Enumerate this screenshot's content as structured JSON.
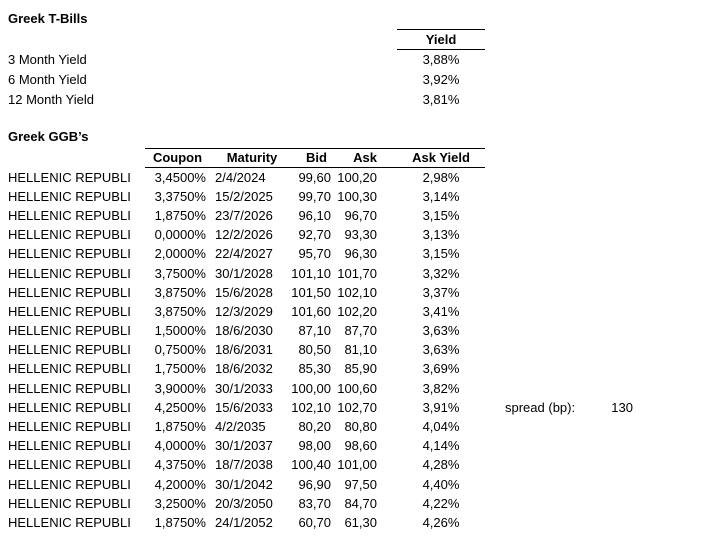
{
  "page": {
    "background_color": "#ffffff",
    "text_color": "#000000"
  },
  "tbills": {
    "title": "Greek T-Bills",
    "yield_header": "Yield",
    "rows": [
      {
        "label": "3 Month Yield",
        "value": "3,88%"
      },
      {
        "label": "6 Month Yield",
        "value": "3,92%"
      },
      {
        "label": "12 Month Yield",
        "value": "3,81%"
      }
    ]
  },
  "ggb": {
    "title": "Greek GGB’s",
    "headers": {
      "coupon": "Coupon",
      "maturity": "Maturity",
      "bid": "Bid",
      "ask": "Ask",
      "ask_yield": "Ask Yield"
    },
    "rows": [
      {
        "name": "HELLENIC REPUBLI",
        "coupon": "3,4500%",
        "maturity": "2/4/2024",
        "bid": "99,60",
        "ask": "100,20",
        "ask_yield": "2,98%"
      },
      {
        "name": "HELLENIC REPUBLI",
        "coupon": "3,3750%",
        "maturity": "15/2/2025",
        "bid": "99,70",
        "ask": "100,30",
        "ask_yield": "3,14%"
      },
      {
        "name": "HELLENIC REPUBLI",
        "coupon": "1,8750%",
        "maturity": "23/7/2026",
        "bid": "96,10",
        "ask": "96,70",
        "ask_yield": "3,15%"
      },
      {
        "name": "HELLENIC REPUBLI",
        "coupon": "0,0000%",
        "maturity": "12/2/2026",
        "bid": "92,70",
        "ask": "93,30",
        "ask_yield": "3,13%"
      },
      {
        "name": "HELLENIC REPUBLI",
        "coupon": "2,0000%",
        "maturity": "22/4/2027",
        "bid": "95,70",
        "ask": "96,30",
        "ask_yield": "3,15%"
      },
      {
        "name": "HELLENIC REPUBLI",
        "coupon": "3,7500%",
        "maturity": "30/1/2028",
        "bid": "101,10",
        "ask": "101,70",
        "ask_yield": "3,32%"
      },
      {
        "name": "HELLENIC REPUBLI",
        "coupon": "3,8750%",
        "maturity": "15/6/2028",
        "bid": "101,50",
        "ask": "102,10",
        "ask_yield": "3,37%"
      },
      {
        "name": "HELLENIC REPUBLI",
        "coupon": "3,8750%",
        "maturity": "12/3/2029",
        "bid": "101,60",
        "ask": "102,20",
        "ask_yield": "3,41%"
      },
      {
        "name": "HELLENIC REPUBLI",
        "coupon": "1,5000%",
        "maturity": "18/6/2030",
        "bid": "87,10",
        "ask": "87,70",
        "ask_yield": "3,63%"
      },
      {
        "name": "HELLENIC REPUBLI",
        "coupon": "0,7500%",
        "maturity": "18/6/2031",
        "bid": "80,50",
        "ask": "81,10",
        "ask_yield": "3,63%"
      },
      {
        "name": "HELLENIC REPUBLI",
        "coupon": "1,7500%",
        "maturity": "18/6/2032",
        "bid": "85,30",
        "ask": "85,90",
        "ask_yield": "3,69%"
      },
      {
        "name": "HELLENIC REPUBLI",
        "coupon": "3,9000%",
        "maturity": "30/1/2033",
        "bid": "100,00",
        "ask": "100,60",
        "ask_yield": "3,82%"
      },
      {
        "name": "HELLENIC REPUBLI",
        "coupon": "4,2500%",
        "maturity": "15/6/2033",
        "bid": "102,10",
        "ask": "102,70",
        "ask_yield": "3,91%"
      },
      {
        "name": "HELLENIC REPUBLI",
        "coupon": "1,8750%",
        "maturity": "4/2/2035",
        "bid": "80,20",
        "ask": "80,80",
        "ask_yield": "4,04%"
      },
      {
        "name": "HELLENIC REPUBLI",
        "coupon": "4,0000%",
        "maturity": "30/1/2037",
        "bid": "98,00",
        "ask": "98,60",
        "ask_yield": "4,14%"
      },
      {
        "name": "HELLENIC REPUBLI",
        "coupon": "4,3750%",
        "maturity": "18/7/2038",
        "bid": "100,40",
        "ask": "101,00",
        "ask_yield": "4,28%"
      },
      {
        "name": "HELLENIC REPUBLI",
        "coupon": "4,2000%",
        "maturity": "30/1/2042",
        "bid": "96,90",
        "ask": "97,50",
        "ask_yield": "4,40%"
      },
      {
        "name": "HELLENIC REPUBLI",
        "coupon": "3,2500%",
        "maturity": "20/3/2050",
        "bid": "83,70",
        "ask": "84,70",
        "ask_yield": "4,22%"
      },
      {
        "name": "HELLENIC REPUBLI",
        "coupon": "1,8750%",
        "maturity": "24/1/2052",
        "bid": "60,70",
        "ask": "61,30",
        "ask_yield": "4,26%"
      }
    ]
  },
  "spread": {
    "label": "spread (bp):",
    "value": "130"
  }
}
